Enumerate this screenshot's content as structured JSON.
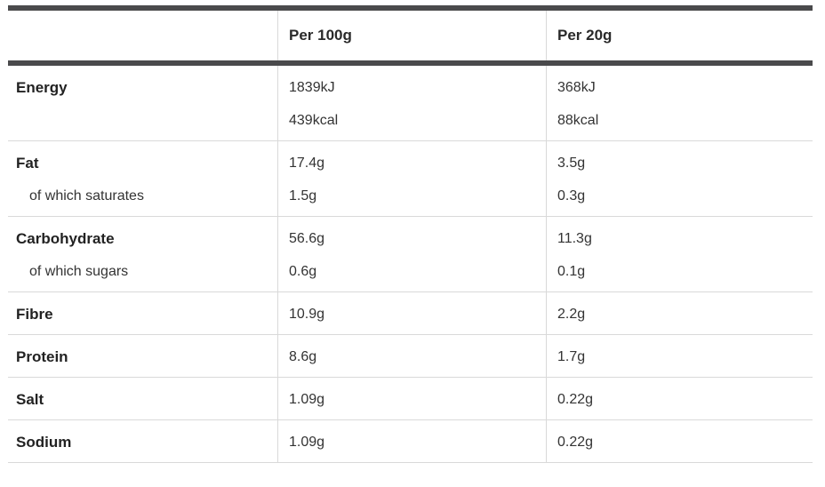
{
  "table": {
    "columns": [
      "",
      "Per 100g",
      "Per 20g"
    ],
    "rows": [
      {
        "labels": [
          "Energy"
        ],
        "per100": [
          "1839kJ",
          "439kcal"
        ],
        "per20": [
          "368kJ",
          "88kcal"
        ]
      },
      {
        "labels": [
          "Fat",
          "of which saturates"
        ],
        "per100": [
          "17.4g",
          "1.5g"
        ],
        "per20": [
          "3.5g",
          "0.3g"
        ]
      },
      {
        "labels": [
          "Carbohydrate",
          "of which sugars"
        ],
        "per100": [
          "56.6g",
          "0.6g"
        ],
        "per20": [
          "11.3g",
          "0.1g"
        ]
      },
      {
        "labels": [
          "Fibre"
        ],
        "per100": [
          "10.9g"
        ],
        "per20": [
          "2.2g"
        ]
      },
      {
        "labels": [
          "Protein"
        ],
        "per100": [
          "8.6g"
        ],
        "per20": [
          "1.7g"
        ]
      },
      {
        "labels": [
          "Salt"
        ],
        "per100": [
          "1.09g"
        ],
        "per20": [
          "0.22g"
        ]
      },
      {
        "labels": [
          "Sodium"
        ],
        "per100": [
          "1.09g"
        ],
        "per20": [
          "0.22g"
        ]
      }
    ]
  }
}
